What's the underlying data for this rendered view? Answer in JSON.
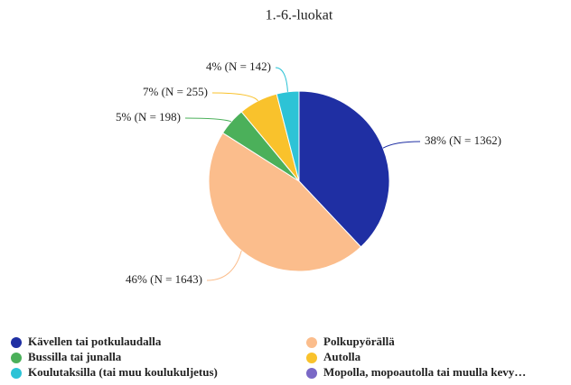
{
  "chart_data": {
    "type": "pie",
    "title": "1.-6.-luokat",
    "categories": [
      "Kävellen tai potkulaudalla",
      "Polkupyörällä",
      "Bussilla tai junalla",
      "Autolla",
      "Koulutaksilla (tai muu koulukuljetus)",
      "Mopolla, mopoautolla tai muulla kevy…"
    ],
    "values": [
      38,
      46,
      5,
      7,
      4,
      0
    ],
    "value_labels": [
      "38% (N = 1362)",
      "46% (N = 1643)",
      "5% (N = 198)",
      "7% (N = 255)",
      "4% (N = 142)",
      null
    ],
    "colors": [
      "#1f2fa3",
      "#fbbd8c",
      "#4bb05a",
      "#f9c22c",
      "#2dc3d6",
      "#7a68c6"
    ]
  }
}
